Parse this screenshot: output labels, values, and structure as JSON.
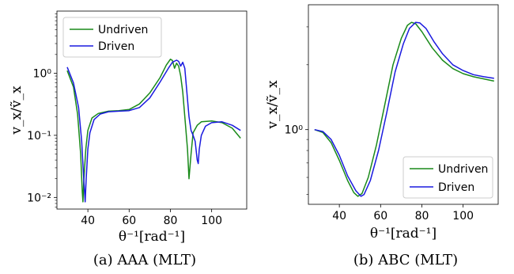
{
  "colors": {
    "undriven": "#1a8a1a",
    "driven": "#1a1adf"
  },
  "chart_data": [
    {
      "type": "line",
      "caption": "(a) AAA (MLT)",
      "xlabel": "θ⁻¹[rad⁻¹]",
      "ylabel": "v_x/ṽ_x",
      "yscale": "log",
      "xlim": [
        25,
        117
      ],
      "ylim": [
        0.0065,
        10
      ],
      "xticks": [
        40,
        60,
        80,
        100
      ],
      "yticks": [
        {
          "v": 0.01,
          "label": "10⁻²"
        },
        {
          "v": 0.1,
          "label": "10⁻¹"
        },
        {
          "v": 1,
          "label": "10⁰"
        }
      ],
      "legend": "upper-left",
      "series": [
        {
          "name": "Undriven",
          "color_key": "undriven",
          "points": [
            [
              30,
              1.1
            ],
            [
              33,
              0.6
            ],
            [
              35,
              0.22
            ],
            [
              36.5,
              0.05
            ],
            [
              37.3,
              0.012
            ],
            [
              37.6,
              0.0085
            ],
            [
              38,
              0.018
            ],
            [
              39,
              0.06
            ],
            [
              40,
              0.12
            ],
            [
              42,
              0.19
            ],
            [
              45,
              0.225
            ],
            [
              50,
              0.245
            ],
            [
              55,
              0.25
            ],
            [
              60,
              0.26
            ],
            [
              65,
              0.32
            ],
            [
              70,
              0.48
            ],
            [
              75,
              0.85
            ],
            [
              78,
              1.35
            ],
            [
              80,
              1.68
            ],
            [
              81,
              1.6
            ],
            [
              82,
              1.2
            ],
            [
              83,
              1.45
            ],
            [
              84,
              1.3
            ],
            [
              85,
              0.9
            ],
            [
              86,
              0.5
            ],
            [
              87,
              0.2
            ],
            [
              88.3,
              0.06
            ],
            [
              89,
              0.02
            ],
            [
              90,
              0.05
            ],
            [
              91,
              0.11
            ],
            [
              93,
              0.145
            ],
            [
              95,
              0.165
            ],
            [
              100,
              0.17
            ],
            [
              105,
              0.16
            ],
            [
              110,
              0.13
            ],
            [
              114,
              0.09
            ]
          ]
        },
        {
          "name": "Driven",
          "color_key": "driven",
          "points": [
            [
              30,
              1.25
            ],
            [
              33,
              0.7
            ],
            [
              35.5,
              0.28
            ],
            [
              37,
              0.08
            ],
            [
              38,
              0.02
            ],
            [
              38.7,
              0.0085
            ],
            [
              39.2,
              0.02
            ],
            [
              40,
              0.06
            ],
            [
              41,
              0.11
            ],
            [
              43,
              0.18
            ],
            [
              46,
              0.22
            ],
            [
              50,
              0.24
            ],
            [
              55,
              0.245
            ],
            [
              60,
              0.25
            ],
            [
              65,
              0.28
            ],
            [
              70,
              0.4
            ],
            [
              75,
              0.72
            ],
            [
              79,
              1.2
            ],
            [
              81,
              1.5
            ],
            [
              83,
              1.62
            ],
            [
              84,
              1.55
            ],
            [
              85,
              1.3
            ],
            [
              86,
              1.5
            ],
            [
              87,
              1.2
            ],
            [
              88,
              0.5
            ],
            [
              89,
              0.2
            ],
            [
              90,
              0.12
            ],
            [
              91,
              0.1
            ],
            [
              92,
              0.08
            ],
            [
              93,
              0.04
            ],
            [
              93.5,
              0.035
            ],
            [
              94,
              0.06
            ],
            [
              95,
              0.1
            ],
            [
              97,
              0.14
            ],
            [
              100,
              0.16
            ],
            [
              105,
              0.165
            ],
            [
              110,
              0.145
            ],
            [
              114,
              0.12
            ]
          ]
        }
      ]
    },
    {
      "type": "line",
      "caption": "(b) ABC (MLT)",
      "xlabel": "θ⁻¹[rad⁻¹]",
      "ylabel": "v_x/ṽ_x",
      "yscale": "log",
      "xlim": [
        25,
        117
      ],
      "ylim": [
        0.45,
        3.8
      ],
      "xticks": [
        40,
        60,
        80,
        100
      ],
      "yticks": [
        {
          "v": 1,
          "label": "10⁰"
        }
      ],
      "legend": "lower-right",
      "series": [
        {
          "name": "Undriven",
          "color_key": "undriven",
          "points": [
            [
              28,
              1.0
            ],
            [
              32,
              0.97
            ],
            [
              36,
              0.87
            ],
            [
              40,
              0.72
            ],
            [
              44,
              0.58
            ],
            [
              47,
              0.51
            ],
            [
              49,
              0.49
            ],
            [
              51,
              0.505
            ],
            [
              54,
              0.6
            ],
            [
              58,
              0.85
            ],
            [
              62,
              1.3
            ],
            [
              66,
              2.0
            ],
            [
              70,
              2.65
            ],
            [
              73,
              3.05
            ],
            [
              75,
              3.15
            ],
            [
              77,
              3.1
            ],
            [
              80,
              2.85
            ],
            [
              85,
              2.4
            ],
            [
              90,
              2.1
            ],
            [
              95,
              1.92
            ],
            [
              100,
              1.82
            ],
            [
              105,
              1.76
            ],
            [
              110,
              1.72
            ],
            [
              115,
              1.68
            ]
          ]
        },
        {
          "name": "Driven",
          "color_key": "driven",
          "points": [
            [
              28,
              1.0
            ],
            [
              32,
              0.98
            ],
            [
              36,
              0.9
            ],
            [
              40,
              0.76
            ],
            [
              44,
              0.61
            ],
            [
              48,
              0.52
            ],
            [
              50.5,
              0.49
            ],
            [
              52,
              0.5
            ],
            [
              55,
              0.58
            ],
            [
              59,
              0.8
            ],
            [
              63,
              1.2
            ],
            [
              67,
              1.85
            ],
            [
              71,
              2.5
            ],
            [
              74,
              2.95
            ],
            [
              77,
              3.15
            ],
            [
              79,
              3.13
            ],
            [
              82,
              2.95
            ],
            [
              86,
              2.55
            ],
            [
              90,
              2.25
            ],
            [
              95,
              2.0
            ],
            [
              100,
              1.88
            ],
            [
              105,
              1.8
            ],
            [
              110,
              1.76
            ],
            [
              115,
              1.73
            ]
          ]
        }
      ]
    }
  ]
}
